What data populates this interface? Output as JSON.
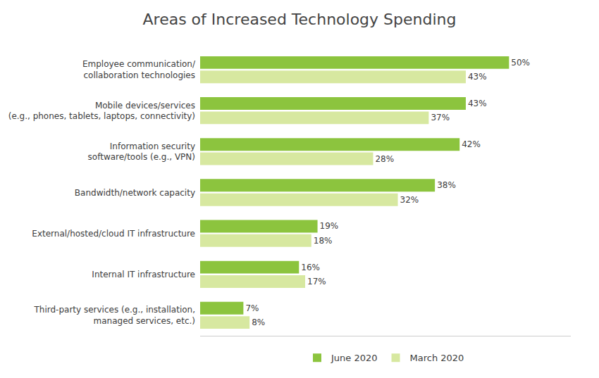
{
  "chart_data": {
    "type": "bar",
    "orientation": "horizontal",
    "title": "Areas of Increased Technology Spending",
    "categories": [
      "Third-party services (e.g., installation,\nmanaged services, etc.)",
      "Internal IT infrastructure",
      "External/hosted/cloud IT infrastructure",
      "Bandwidth/network capacity",
      "Information security\nsoftware/tools (e.g., VPN)",
      "Mobile devices/services\n(e.g., phones, tablets, laptops, connectivity)",
      "Employee communication/\ncollaboration technologies"
    ],
    "series": [
      {
        "name": "June 2020",
        "color": "#8cc43e",
        "values": [
          7,
          16,
          19,
          38,
          42,
          43,
          50
        ],
        "value_labels": [
          "7%",
          "16%",
          "19%",
          "38%",
          "42%",
          "43%",
          "50%"
        ]
      },
      {
        "name": "March 2020",
        "color": "#d7e8a0",
        "values": [
          8,
          17,
          18,
          32,
          28,
          37,
          43
        ],
        "value_labels": [
          "8%",
          "17%",
          "18%",
          "32%",
          "28%",
          "37%",
          "43%"
        ]
      }
    ],
    "xlim": [
      0,
      60
    ],
    "xticks": [],
    "tick_labels": "y",
    "data_labels": true,
    "grid": false,
    "legend": "bottom"
  }
}
